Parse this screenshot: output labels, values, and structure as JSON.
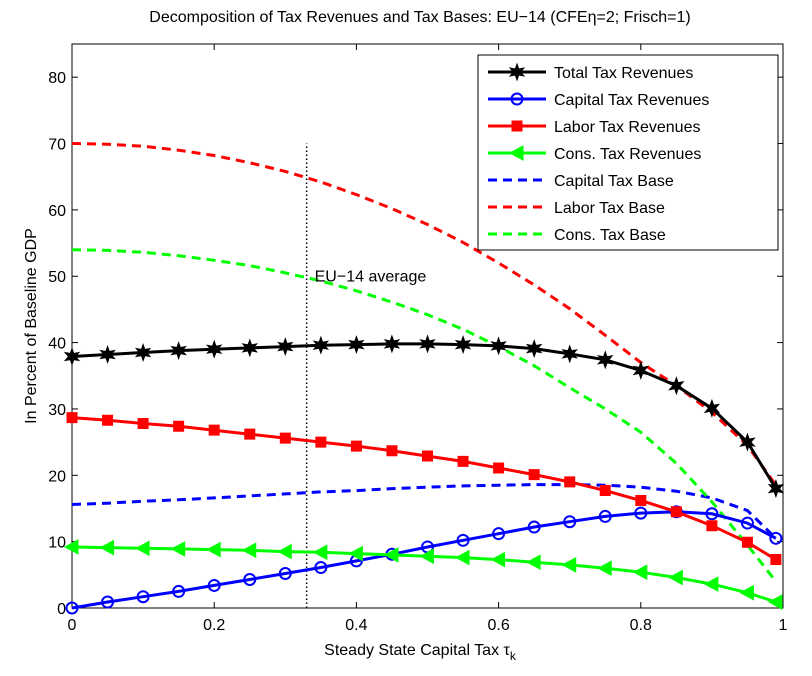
{
  "chart_data": {
    "type": "line",
    "title": "Decomposition of Tax Revenues and Tax Bases: EU−14 (CFEη=2; Frisch=1)",
    "x_label": "Steady State Capital Tax τ",
    "x_label_subscript": "k",
    "y_label": "In Percent of Baseline GDP",
    "x": [
      0,
      0.05,
      0.1,
      0.15,
      0.2,
      0.25,
      0.3,
      0.35,
      0.4,
      0.45,
      0.5,
      0.55,
      0.6,
      0.65,
      0.7,
      0.75,
      0.8,
      0.85,
      0.9,
      0.95,
      0.99
    ],
    "series": [
      {
        "name": "Total Tax Revenues",
        "color": "#000000",
        "marker": "star",
        "dashed": false,
        "values": [
          37.9,
          38.2,
          38.5,
          38.8,
          39.0,
          39.2,
          39.4,
          39.6,
          39.7,
          39.8,
          39.8,
          39.7,
          39.5,
          39.1,
          38.3,
          37.4,
          35.8,
          33.5,
          30.1,
          25.0,
          18.0
        ]
      },
      {
        "name": "Capital Tax Revenues",
        "color": "#0000ff",
        "marker": "circle",
        "dashed": false,
        "values": [
          0,
          0.9,
          1.7,
          2.5,
          3.4,
          4.3,
          5.2,
          6.1,
          7.1,
          8.1,
          9.2,
          10.2,
          11.2,
          12.2,
          13.0,
          13.8,
          14.3,
          14.5,
          14.2,
          12.8,
          10.5
        ]
      },
      {
        "name": "Labor Tax Revenues",
        "color": "#ff0000",
        "marker": "square",
        "dashed": false,
        "values": [
          28.7,
          28.3,
          27.8,
          27.4,
          26.8,
          26.2,
          25.6,
          25.0,
          24.4,
          23.7,
          22.9,
          22.1,
          21.1,
          20.1,
          19.0,
          17.7,
          16.2,
          14.5,
          12.4,
          9.9,
          7.3
        ]
      },
      {
        "name": "Cons. Tax Revenues",
        "color": "#00ff00",
        "marker": "triangle-left",
        "dashed": false,
        "values": [
          9.2,
          9.1,
          9.0,
          8.9,
          8.8,
          8.7,
          8.5,
          8.4,
          8.2,
          8.0,
          7.8,
          7.6,
          7.3,
          6.9,
          6.5,
          6.0,
          5.4,
          4.6,
          3.6,
          2.3,
          0.9
        ]
      },
      {
        "name": "Capital Tax Base",
        "color": "#0000ff",
        "marker": "none",
        "dashed": true,
        "values": [
          15.6,
          15.8,
          16.1,
          16.3,
          16.6,
          16.9,
          17.2,
          17.5,
          17.7,
          18.0,
          18.2,
          18.4,
          18.5,
          18.6,
          18.6,
          18.5,
          18.2,
          17.6,
          16.6,
          14.7,
          10.5
        ]
      },
      {
        "name": "Labor Tax Base",
        "color": "#ff0000",
        "marker": "none",
        "dashed": true,
        "values": [
          70,
          69.9,
          69.6,
          69.0,
          68.2,
          67.1,
          65.8,
          64.2,
          62.3,
          60.2,
          57.8,
          55.1,
          52.0,
          48.7,
          45.1,
          41.1,
          37.0,
          33.5,
          29.5,
          24.5,
          18.5
        ]
      },
      {
        "name": "Cons. Tax Base",
        "color": "#00ff00",
        "marker": "none",
        "dashed": true,
        "values": [
          54,
          53.9,
          53.6,
          53.1,
          52.4,
          51.6,
          50.5,
          49.3,
          47.8,
          46.1,
          44.2,
          42.0,
          39.4,
          36.5,
          33.2,
          30.0,
          26.5,
          21.8,
          16.0,
          9.5,
          4.0
        ]
      }
    ],
    "vline": {
      "x": 0.33,
      "top": 70
    },
    "annotation": "EU−14 average",
    "xlim": [
      0,
      1
    ],
    "xticks": [
      0,
      0.2,
      0.4,
      0.6,
      0.8,
      1
    ],
    "ylim": [
      0,
      85
    ],
    "yticks": [
      0,
      10,
      20,
      30,
      40,
      50,
      60,
      70,
      80
    ],
    "grid": false,
    "legend_position": "upper-right"
  }
}
